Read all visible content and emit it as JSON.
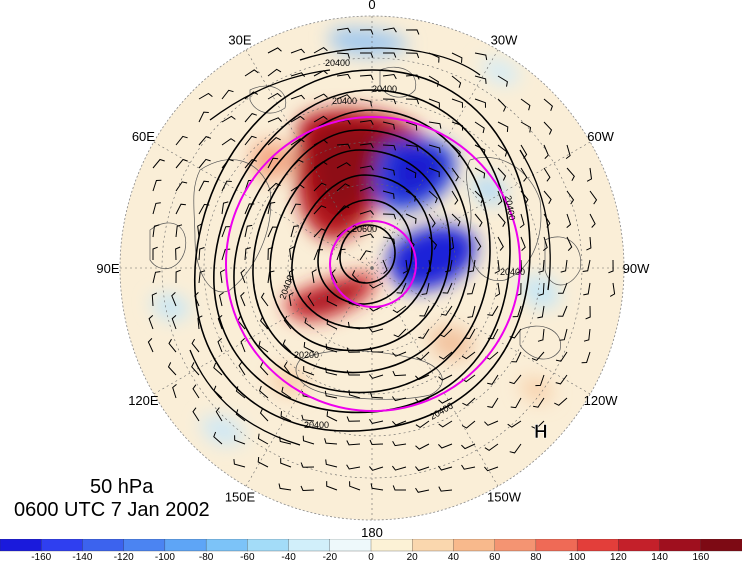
{
  "level": "50 hPa",
  "time": "0600 UTC 7 Jan 2002",
  "longitudes": [
    {
      "label": "0",
      "deg": 0
    },
    {
      "label": "30W",
      "deg": -30
    },
    {
      "label": "60W",
      "deg": -60
    },
    {
      "label": "90W",
      "deg": -90
    },
    {
      "label": "120W",
      "deg": -120
    },
    {
      "label": "150W",
      "deg": -150
    },
    {
      "label": "180",
      "deg": 180
    },
    {
      "label": "150E",
      "deg": 150
    },
    {
      "label": "120E",
      "deg": 120
    },
    {
      "label": "90E",
      "deg": 90
    },
    {
      "label": "60E",
      "deg": 60
    },
    {
      "label": "30E",
      "deg": 30
    }
  ],
  "contour_labels": [
    "20400",
    "20400",
    "20400",
    "20400",
    "20400",
    "20200",
    "20400",
    "20400",
    "20400",
    "20600"
  ],
  "high_marker": "H",
  "colorbar": {
    "ticks": [
      "-160",
      "-140",
      "-120",
      "-100",
      "-80",
      "-60",
      "-40",
      "-20",
      "0",
      "20",
      "40",
      "60",
      "80",
      "100",
      "120",
      "140",
      "160"
    ],
    "colors": [
      "#1a1adc",
      "#2f3ff0",
      "#3c63ee",
      "#4b84f2",
      "#5ea5f6",
      "#7cc3f8",
      "#a3dcf8",
      "#d1effa",
      "#eef9fb",
      "#fcf2d6",
      "#fad7ae",
      "#f8b98c",
      "#f49472",
      "#ef6a56",
      "#e33e3a",
      "#c4202a",
      "#9f0f1e",
      "#7d0a14"
    ]
  },
  "colors": {
    "magenta": "#ee00ee",
    "land": "#555555"
  }
}
